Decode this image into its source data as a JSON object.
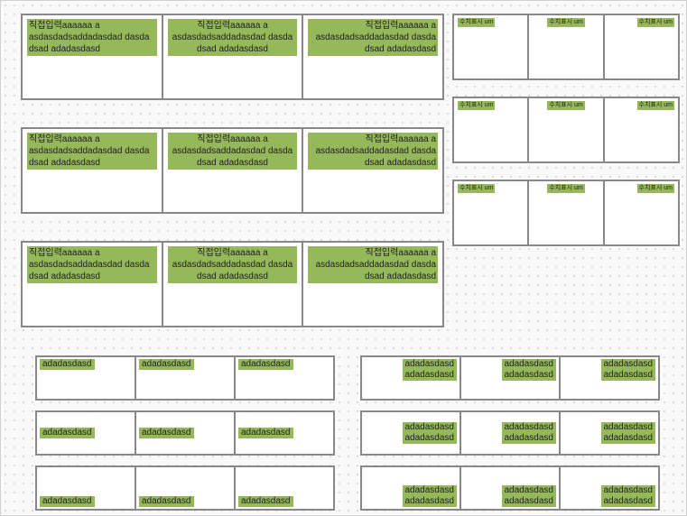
{
  "colors": {
    "badge_bg": "#94b85a",
    "cell_bg": "#ffffff",
    "border": "#888888",
    "canvas_bg": "#f9f9f9",
    "dot": "#cfcfcf"
  },
  "big_grid": {
    "rows": 3,
    "cols": 3,
    "aligns": [
      "left",
      "center",
      "right"
    ],
    "text": "직접입력aaaaaa\na\nasdasdadsaddadasdad\ndasda\ndsad\nadadasdasd"
  },
  "small_grid": {
    "rows": 3,
    "cols": 3,
    "aligns": [
      "left",
      "center",
      "right"
    ],
    "text": "수치표시\num"
  },
  "bottom_left": {
    "cols": 3,
    "rows": [
      {
        "valign": "v-top",
        "lines": 1
      },
      {
        "valign": "v-mid",
        "lines": 1
      },
      {
        "valign": "v-bot",
        "lines": 1
      }
    ],
    "text": "adadasdasd"
  },
  "bottom_right": {
    "cols": 3,
    "rows": [
      {
        "valign": "v-top",
        "lines": 2
      },
      {
        "valign": "v-mid",
        "lines": 2
      },
      {
        "valign": "v-bot",
        "lines": 2
      }
    ],
    "text": "adadasdasd"
  }
}
